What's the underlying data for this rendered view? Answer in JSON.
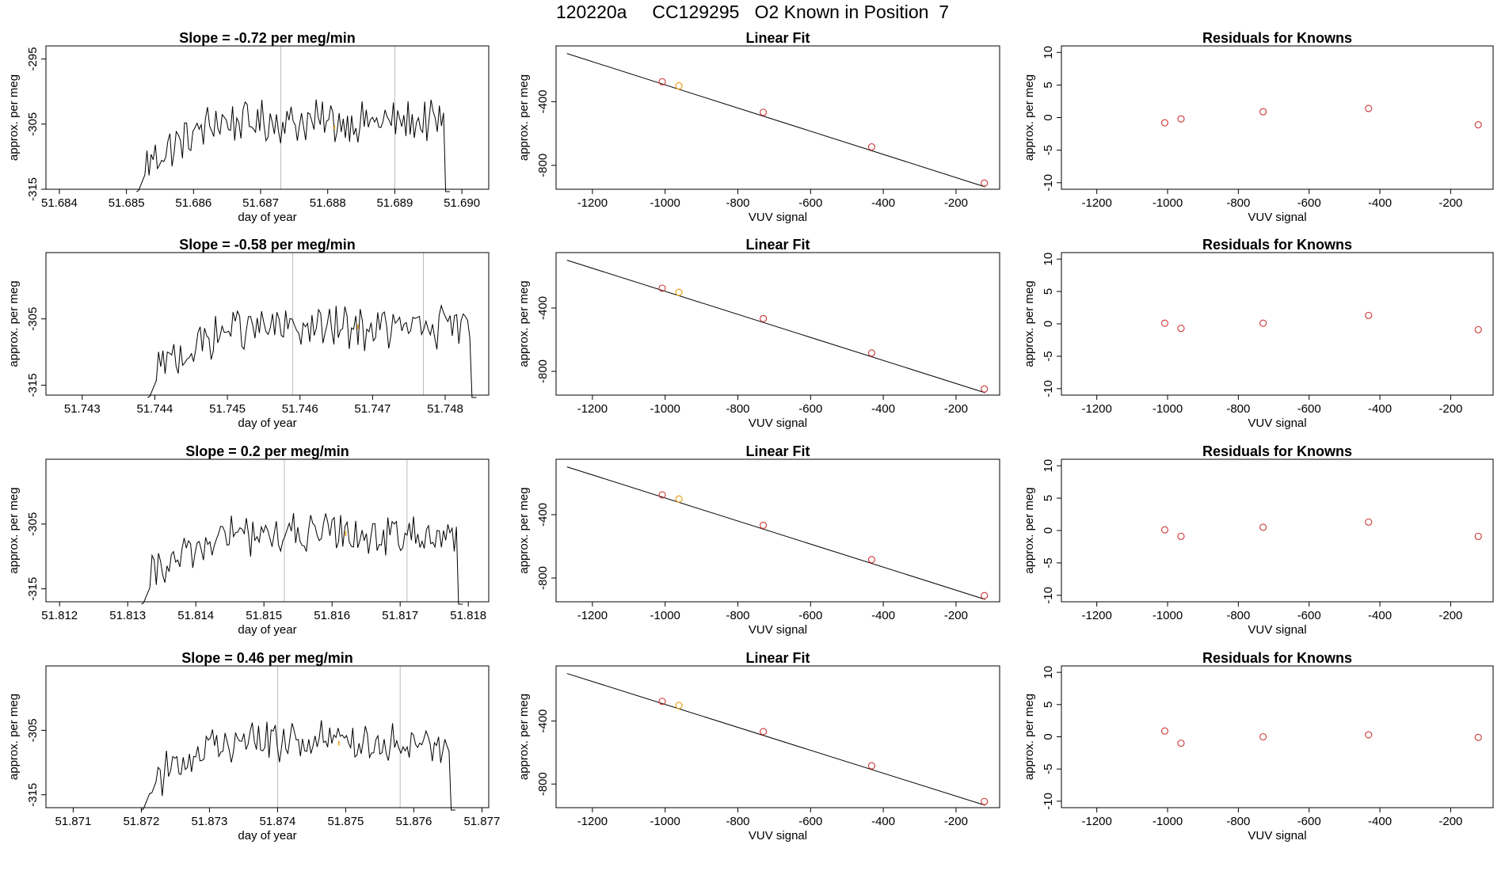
{
  "title": "120220a     CC129295   O2 Known in Position  7",
  "colors": {
    "line": "#000000",
    "known_point": "#cc3333",
    "highlight_point": "#e89a00",
    "marker_line": "#bbbbbb",
    "frame": "#000000"
  },
  "chart_data": [
    {
      "row": 1,
      "panel": "timeseries",
      "type": "line",
      "title": "Slope =  -0.72  per meg/min",
      "xlabel": "day of year",
      "ylabel": "approx. per meg",
      "xlim": [
        51.6838,
        51.6904
      ],
      "ylim": [
        -315,
        -293
      ],
      "x_ticks": [
        "51.684",
        "51.685",
        "51.686",
        "51.687",
        "51.688",
        "51.689",
        "51.690"
      ],
      "y_ticks": [
        "-295",
        "-305",
        "-315"
      ],
      "vlines": [
        51.6873,
        51.689
      ],
      "start_x": 51.68515,
      "end_x": 51.68982,
      "highlight_point": {
        "x": 51.6881,
        "y": -305.5
      }
    },
    {
      "row": 1,
      "panel": "linear_fit",
      "type": "scatter",
      "title": "Linear Fit",
      "xlabel": "VUV signal",
      "ylabel": "approx. per meg",
      "xlim": [
        -1300,
        -80
      ],
      "ylim": [
        -950,
        -50
      ],
      "x_ticks": [
        "-1200",
        "-1000",
        "-800",
        "-600",
        "-400",
        "-200"
      ],
      "y_ticks": [
        "-400",
        "-800"
      ],
      "fit_line": {
        "x": [
          -1270,
          -120
        ],
        "y": [
          -98,
          -935
        ]
      },
      "points": [
        {
          "x": -1008,
          "y": -275,
          "highlight": false
        },
        {
          "x": -962,
          "y": -301,
          "highlight": true
        },
        {
          "x": -730,
          "y": -467,
          "highlight": false
        },
        {
          "x": -432,
          "y": -684,
          "highlight": false
        },
        {
          "x": -122,
          "y": -911,
          "highlight": false
        }
      ]
    },
    {
      "row": 1,
      "panel": "residuals",
      "type": "scatter",
      "title": "Residuals for Knowns",
      "xlabel": "VUV signal",
      "ylabel": "approx. per meg",
      "xlim": [
        -1300,
        -80
      ],
      "ylim": [
        -11,
        11
      ],
      "x_ticks": [
        "-1200",
        "-1000",
        "-800",
        "-600",
        "-400",
        "-200"
      ],
      "y_ticks": [
        "10",
        "5",
        "0",
        "-5",
        "-10"
      ],
      "points": [
        {
          "x": -1008,
          "y": -0.8
        },
        {
          "x": -962,
          "y": -0.2
        },
        {
          "x": -730,
          "y": 0.9
        },
        {
          "x": -432,
          "y": 1.4
        },
        {
          "x": -122,
          "y": -1.1
        }
      ]
    },
    {
      "row": 2,
      "panel": "timeseries",
      "type": "line",
      "title": "Slope =  -0.58  per meg/min",
      "xlabel": "day of year",
      "ylabel": "approx. per meg",
      "xlim": [
        51.7425,
        51.7486
      ],
      "ylim": [
        -316.5,
        -295
      ],
      "x_ticks": [
        "51.743",
        "51.744",
        "51.745",
        "51.746",
        "51.747",
        "51.748"
      ],
      "y_ticks": [
        "-305",
        "-315"
      ],
      "vlines": [
        51.7459,
        51.7477
      ],
      "start_x": 51.7439,
      "end_x": 51.74843,
      "highlight_point": {
        "x": 51.7468,
        "y": -306.2
      }
    },
    {
      "row": 2,
      "panel": "linear_fit",
      "type": "scatter",
      "title": "Linear Fit",
      "xlabel": "VUV signal",
      "ylabel": "approx. per meg",
      "xlim": [
        -1300,
        -80
      ],
      "ylim": [
        -950,
        -50
      ],
      "x_ticks": [
        "-1200",
        "-1000",
        "-800",
        "-600",
        "-400",
        "-200"
      ],
      "y_ticks": [
        "-400",
        "-800"
      ],
      "fit_line": {
        "x": [
          -1270,
          -120
        ],
        "y": [
          -98,
          -935
        ]
      },
      "points": [
        {
          "x": -1008,
          "y": -275,
          "highlight": false
        },
        {
          "x": -962,
          "y": -301,
          "highlight": true
        },
        {
          "x": -730,
          "y": -467,
          "highlight": false
        },
        {
          "x": -432,
          "y": -684,
          "highlight": false
        },
        {
          "x": -122,
          "y": -911,
          "highlight": false
        }
      ]
    },
    {
      "row": 2,
      "panel": "residuals",
      "type": "scatter",
      "title": "Residuals for Knowns",
      "xlabel": "VUV signal",
      "ylabel": "approx. per meg",
      "xlim": [
        -1300,
        -80
      ],
      "ylim": [
        -11,
        11
      ],
      "x_ticks": [
        "-1200",
        "-1000",
        "-800",
        "-600",
        "-400",
        "-200"
      ],
      "y_ticks": [
        "10",
        "5",
        "0",
        "-5",
        "-10"
      ],
      "points": [
        {
          "x": -1008,
          "y": 0.1
        },
        {
          "x": -962,
          "y": -0.7
        },
        {
          "x": -730,
          "y": 0.1
        },
        {
          "x": -432,
          "y": 1.3
        },
        {
          "x": -122,
          "y": -0.9
        }
      ]
    },
    {
      "row": 3,
      "panel": "timeseries",
      "type": "line",
      "title": "Slope =  0.2  per meg/min",
      "xlabel": "day of year",
      "ylabel": "approx. per meg",
      "xlim": [
        51.8118,
        51.8183
      ],
      "ylim": [
        -317,
        -295
      ],
      "x_ticks": [
        "51.812",
        "51.813",
        "51.814",
        "51.815",
        "51.816",
        "51.817",
        "51.818"
      ],
      "y_ticks": [
        "-305",
        "-315"
      ],
      "vlines": [
        51.8153,
        51.8171
      ],
      "start_x": 51.8132,
      "end_x": 51.81792,
      "highlight_point": {
        "x": 51.8162,
        "y": -306.5
      }
    },
    {
      "row": 3,
      "panel": "linear_fit",
      "type": "scatter",
      "title": "Linear Fit",
      "xlabel": "VUV signal",
      "ylabel": "approx. per meg",
      "xlim": [
        -1300,
        -80
      ],
      "ylim": [
        -950,
        -50
      ],
      "x_ticks": [
        "-1200",
        "-1000",
        "-800",
        "-600",
        "-400",
        "-200"
      ],
      "y_ticks": [
        "-400",
        "-800"
      ],
      "fit_line": {
        "x": [
          -1270,
          -120
        ],
        "y": [
          -98,
          -935
        ]
      },
      "points": [
        {
          "x": -1008,
          "y": -275,
          "highlight": false
        },
        {
          "x": -962,
          "y": -301,
          "highlight": true
        },
        {
          "x": -730,
          "y": -467,
          "highlight": false
        },
        {
          "x": -432,
          "y": -684,
          "highlight": false
        },
        {
          "x": -122,
          "y": -911,
          "highlight": false
        }
      ]
    },
    {
      "row": 3,
      "panel": "residuals",
      "type": "scatter",
      "title": "Residuals for Knowns",
      "xlabel": "VUV signal",
      "ylabel": "approx. per meg",
      "xlim": [
        -1300,
        -80
      ],
      "ylim": [
        -11,
        11
      ],
      "x_ticks": [
        "-1200",
        "-1000",
        "-800",
        "-600",
        "-400",
        "-200"
      ],
      "y_ticks": [
        "10",
        "5",
        "0",
        "-5",
        "-10"
      ],
      "points": [
        {
          "x": -1008,
          "y": 0.1
        },
        {
          "x": -962,
          "y": -0.9
        },
        {
          "x": -730,
          "y": 0.5
        },
        {
          "x": -432,
          "y": 1.3
        },
        {
          "x": -122,
          "y": -0.9
        }
      ]
    },
    {
      "row": 4,
      "panel": "timeseries",
      "type": "line",
      "title": "Slope =  0.46  per meg/min",
      "xlabel": "day of year",
      "ylabel": "approx. per meg",
      "xlim": [
        51.8706,
        51.8771
      ],
      "ylim": [
        -317,
        -295
      ],
      "x_ticks": [
        "51.871",
        "51.872",
        "51.873",
        "51.874",
        "51.875",
        "51.876",
        "51.877"
      ],
      "y_ticks": [
        "-305",
        "-315"
      ],
      "vlines": [
        51.874,
        51.8758
      ],
      "start_x": 51.872,
      "end_x": 51.87661,
      "highlight_point": {
        "x": 51.8749,
        "y": -307
      }
    },
    {
      "row": 4,
      "panel": "linear_fit",
      "type": "scatter",
      "title": "Linear Fit",
      "xlabel": "VUV signal",
      "ylabel": "approx. per meg",
      "xlim": [
        -1300,
        -80
      ],
      "ylim": [
        -950,
        -50
      ],
      "x_ticks": [
        "-1200",
        "-1000",
        "-800",
        "-600",
        "-400",
        "-200"
      ],
      "y_ticks": [
        "-400",
        "-800"
      ],
      "fit_line": {
        "x": [
          -1270,
          -120
        ],
        "y": [
          -98,
          -935
        ]
      },
      "points": [
        {
          "x": -1008,
          "y": -275,
          "highlight": false
        },
        {
          "x": -962,
          "y": -301,
          "highlight": true
        },
        {
          "x": -730,
          "y": -467,
          "highlight": false
        },
        {
          "x": -432,
          "y": -684,
          "highlight": false
        },
        {
          "x": -122,
          "y": -911,
          "highlight": false
        }
      ]
    },
    {
      "row": 4,
      "panel": "residuals",
      "type": "scatter",
      "title": "Residuals for Knowns",
      "xlabel": "VUV signal",
      "ylabel": "approx. per meg",
      "xlim": [
        -1300,
        -80
      ],
      "ylim": [
        -11,
        11
      ],
      "x_ticks": [
        "-1200",
        "-1000",
        "-800",
        "-600",
        "-400",
        "-200"
      ],
      "y_ticks": [
        "10",
        "5",
        "0",
        "-5",
        "-10"
      ],
      "points": [
        {
          "x": -1008,
          "y": 0.9
        },
        {
          "x": -962,
          "y": -1.0
        },
        {
          "x": -730,
          "y": 0.0
        },
        {
          "x": -432,
          "y": 0.3
        },
        {
          "x": -122,
          "y": -0.1
        }
      ]
    }
  ]
}
